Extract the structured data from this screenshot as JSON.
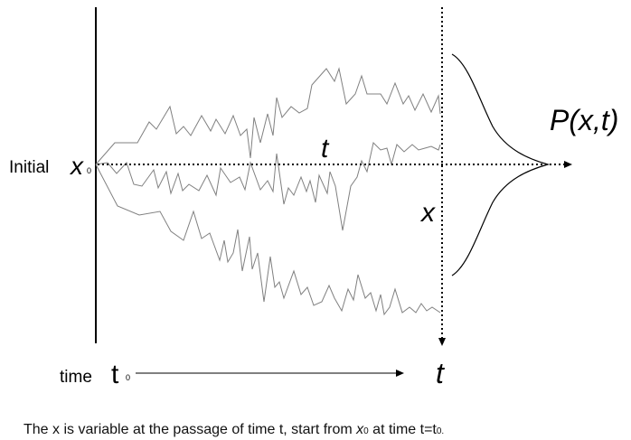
{
  "labels": {
    "initial_word": "Initial",
    "x0_main": "x",
    "x0_sub": "0",
    "t_middle": "t",
    "x_var": "x",
    "p_func": "P(x,t)",
    "time_word": "time",
    "t0_main": "t",
    "t0_sub": "0",
    "t_bottom": "t"
  },
  "caption": {
    "part1": "The x is variable at the passage of time t, start from ",
    "x_main": "x",
    "x_sub": "0",
    "part2": " at time t=t",
    "t_sub": "0."
  },
  "colors": {
    "lines": "#000000",
    "paths": "#7a7a7a"
  }
}
